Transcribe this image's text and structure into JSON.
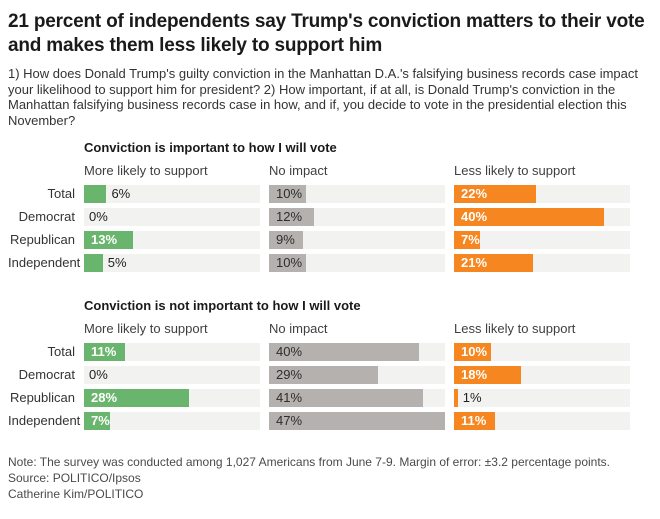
{
  "title": "21 percent of independents say Trump's conviction matters to their vote and makes them less likely to support him",
  "subtitle": "1) How does Donald Trump's guilty conviction in the Manhattan D.A.'s falsifying business records case impact your likelihood to support him for president? 2) How important, if at all, is Donald Trump's conviction in the Manhattan falsifying business records case in how, and if, you decide to vote in the presidential election this November?",
  "colors": {
    "green": "#6ab56d",
    "gray": "#b4b1ae",
    "orange": "#f6861f",
    "track": "#f2f2f1"
  },
  "chart_data": [
    {
      "type": "bar",
      "title": "Conviction is important to how I will vote",
      "categories": [
        "Total",
        "Democrat",
        "Republican",
        "Independent"
      ],
      "series": [
        {
          "name": "More likely to support",
          "color": "#6ab56d",
          "label_inside": "light",
          "values": [
            6,
            0,
            13,
            5
          ]
        },
        {
          "name": "No impact",
          "color": "#b4b1ae",
          "label_inside": "dark",
          "values": [
            10,
            12,
            9,
            10
          ]
        },
        {
          "name": "Less likely to support",
          "color": "#f6861f",
          "label_inside": "light",
          "values": [
            22,
            40,
            7,
            21
          ]
        }
      ],
      "unit": "%",
      "xlim": [
        0,
        47
      ],
      "grid": false,
      "legend_position": "column-headers"
    },
    {
      "type": "bar",
      "title": "Conviction is not important to how I will vote",
      "categories": [
        "Total",
        "Democrat",
        "Republican",
        "Independent"
      ],
      "series": [
        {
          "name": "More likely to support",
          "color": "#6ab56d",
          "label_inside": "light",
          "values": [
            11,
            0,
            28,
            7
          ]
        },
        {
          "name": "No impact",
          "color": "#b4b1ae",
          "label_inside": "dark",
          "values": [
            40,
            29,
            41,
            47
          ]
        },
        {
          "name": "Less likely to support",
          "color": "#f6861f",
          "label_inside": "light",
          "values": [
            10,
            18,
            1,
            11
          ]
        }
      ],
      "unit": "%",
      "xlim": [
        0,
        47
      ],
      "grid": false,
      "legend_position": "column-headers"
    }
  ],
  "note": "Note: The survey was conducted among 1,027 Americans from June 7-9. Margin of error: ±3.2 percentage points.",
  "source": "Source: POLITICO/Ipsos",
  "byline": "Catherine Kim/POLITICO"
}
